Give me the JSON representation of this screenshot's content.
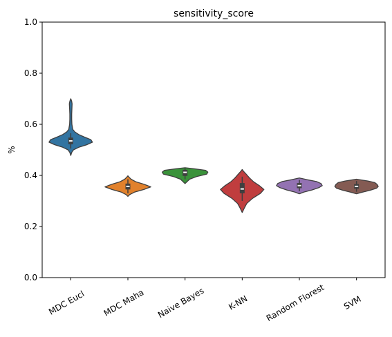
{
  "chart_data": {
    "type": "violin",
    "title": "sensitivity_score",
    "xlabel": "",
    "ylabel": "%",
    "ylim": [
      0,
      1
    ],
    "yticks": [
      "0.0",
      "0.2",
      "0.4",
      "0.6",
      "0.8",
      "1.0"
    ],
    "grid": false,
    "categories": [
      "MDC Eucl",
      "MDC Maha",
      "Naive Bayes",
      "K-NN",
      "Random Florest",
      "SVM"
    ],
    "colors": [
      "#3274a1",
      "#e1812c",
      "#3a923a",
      "#c03d3e",
      "#9372b2",
      "#845b53"
    ],
    "series": [
      {
        "name": "MDC Eucl",
        "min": 0.48,
        "max": 0.7,
        "q1": 0.522,
        "median": 0.535,
        "q3": 0.548,
        "whisker_low": 0.505,
        "whisker_high": 0.565,
        "density": [
          [
            0.478,
            0.002
          ],
          [
            0.49,
            0.04
          ],
          [
            0.5,
            0.12
          ],
          [
            0.51,
            0.35
          ],
          [
            0.52,
            0.7
          ],
          [
            0.53,
            0.95
          ],
          [
            0.54,
            0.88
          ],
          [
            0.55,
            0.6
          ],
          [
            0.56,
            0.35
          ],
          [
            0.57,
            0.18
          ],
          [
            0.58,
            0.09
          ],
          [
            0.6,
            0.05
          ],
          [
            0.62,
            0.04
          ],
          [
            0.64,
            0.04
          ],
          [
            0.66,
            0.05
          ],
          [
            0.68,
            0.06
          ],
          [
            0.69,
            0.04
          ],
          [
            0.7,
            0.002
          ]
        ]
      },
      {
        "name": "MDC Maha",
        "min": 0.318,
        "max": 0.398,
        "q1": 0.345,
        "median": 0.357,
        "q3": 0.368,
        "whisker_low": 0.33,
        "whisker_high": 0.385,
        "density": [
          [
            0.318,
            0.002
          ],
          [
            0.325,
            0.08
          ],
          [
            0.335,
            0.3
          ],
          [
            0.345,
            0.7
          ],
          [
            0.355,
            1.0
          ],
          [
            0.365,
            0.72
          ],
          [
            0.375,
            0.35
          ],
          [
            0.385,
            0.14
          ],
          [
            0.392,
            0.06
          ],
          [
            0.398,
            0.002
          ]
        ]
      },
      {
        "name": "Naive Bayes",
        "min": 0.368,
        "max": 0.43,
        "q1": 0.398,
        "median": 0.412,
        "q3": 0.422,
        "whisker_low": 0.385,
        "whisker_high": 0.428,
        "density": [
          [
            0.368,
            0.002
          ],
          [
            0.375,
            0.08
          ],
          [
            0.385,
            0.2
          ],
          [
            0.395,
            0.5
          ],
          [
            0.405,
            0.95
          ],
          [
            0.413,
            1.0
          ],
          [
            0.42,
            0.9
          ],
          [
            0.426,
            0.4
          ],
          [
            0.43,
            0.002
          ]
        ]
      },
      {
        "name": "K-NN",
        "min": 0.255,
        "max": 0.423,
        "q1": 0.33,
        "median": 0.347,
        "q3": 0.37,
        "whisker_low": 0.3,
        "whisker_high": 0.395,
        "density": [
          [
            0.255,
            0.002
          ],
          [
            0.27,
            0.08
          ],
          [
            0.29,
            0.2
          ],
          [
            0.31,
            0.45
          ],
          [
            0.33,
            0.8
          ],
          [
            0.345,
            0.95
          ],
          [
            0.36,
            0.75
          ],
          [
            0.375,
            0.5
          ],
          [
            0.39,
            0.32
          ],
          [
            0.405,
            0.17
          ],
          [
            0.415,
            0.07
          ],
          [
            0.423,
            0.002
          ]
        ]
      },
      {
        "name": "Random Florest",
        "min": 0.328,
        "max": 0.39,
        "q1": 0.35,
        "median": 0.36,
        "q3": 0.37,
        "whisker_low": 0.338,
        "whisker_high": 0.382,
        "density": [
          [
            0.328,
            0.002
          ],
          [
            0.335,
            0.2
          ],
          [
            0.343,
            0.55
          ],
          [
            0.352,
            0.85
          ],
          [
            0.36,
            1.0
          ],
          [
            0.368,
            0.95
          ],
          [
            0.376,
            0.75
          ],
          [
            0.383,
            0.35
          ],
          [
            0.39,
            0.002
          ]
        ]
      },
      {
        "name": "SVM",
        "min": 0.328,
        "max": 0.385,
        "q1": 0.348,
        "median": 0.357,
        "q3": 0.366,
        "whisker_low": 0.336,
        "whisker_high": 0.378,
        "density": [
          [
            0.328,
            0.002
          ],
          [
            0.334,
            0.25
          ],
          [
            0.342,
            0.6
          ],
          [
            0.35,
            0.88
          ],
          [
            0.357,
            0.95
          ],
          [
            0.365,
            0.9
          ],
          [
            0.372,
            0.8
          ],
          [
            0.378,
            0.5
          ],
          [
            0.385,
            0.002
          ]
        ]
      }
    ]
  }
}
